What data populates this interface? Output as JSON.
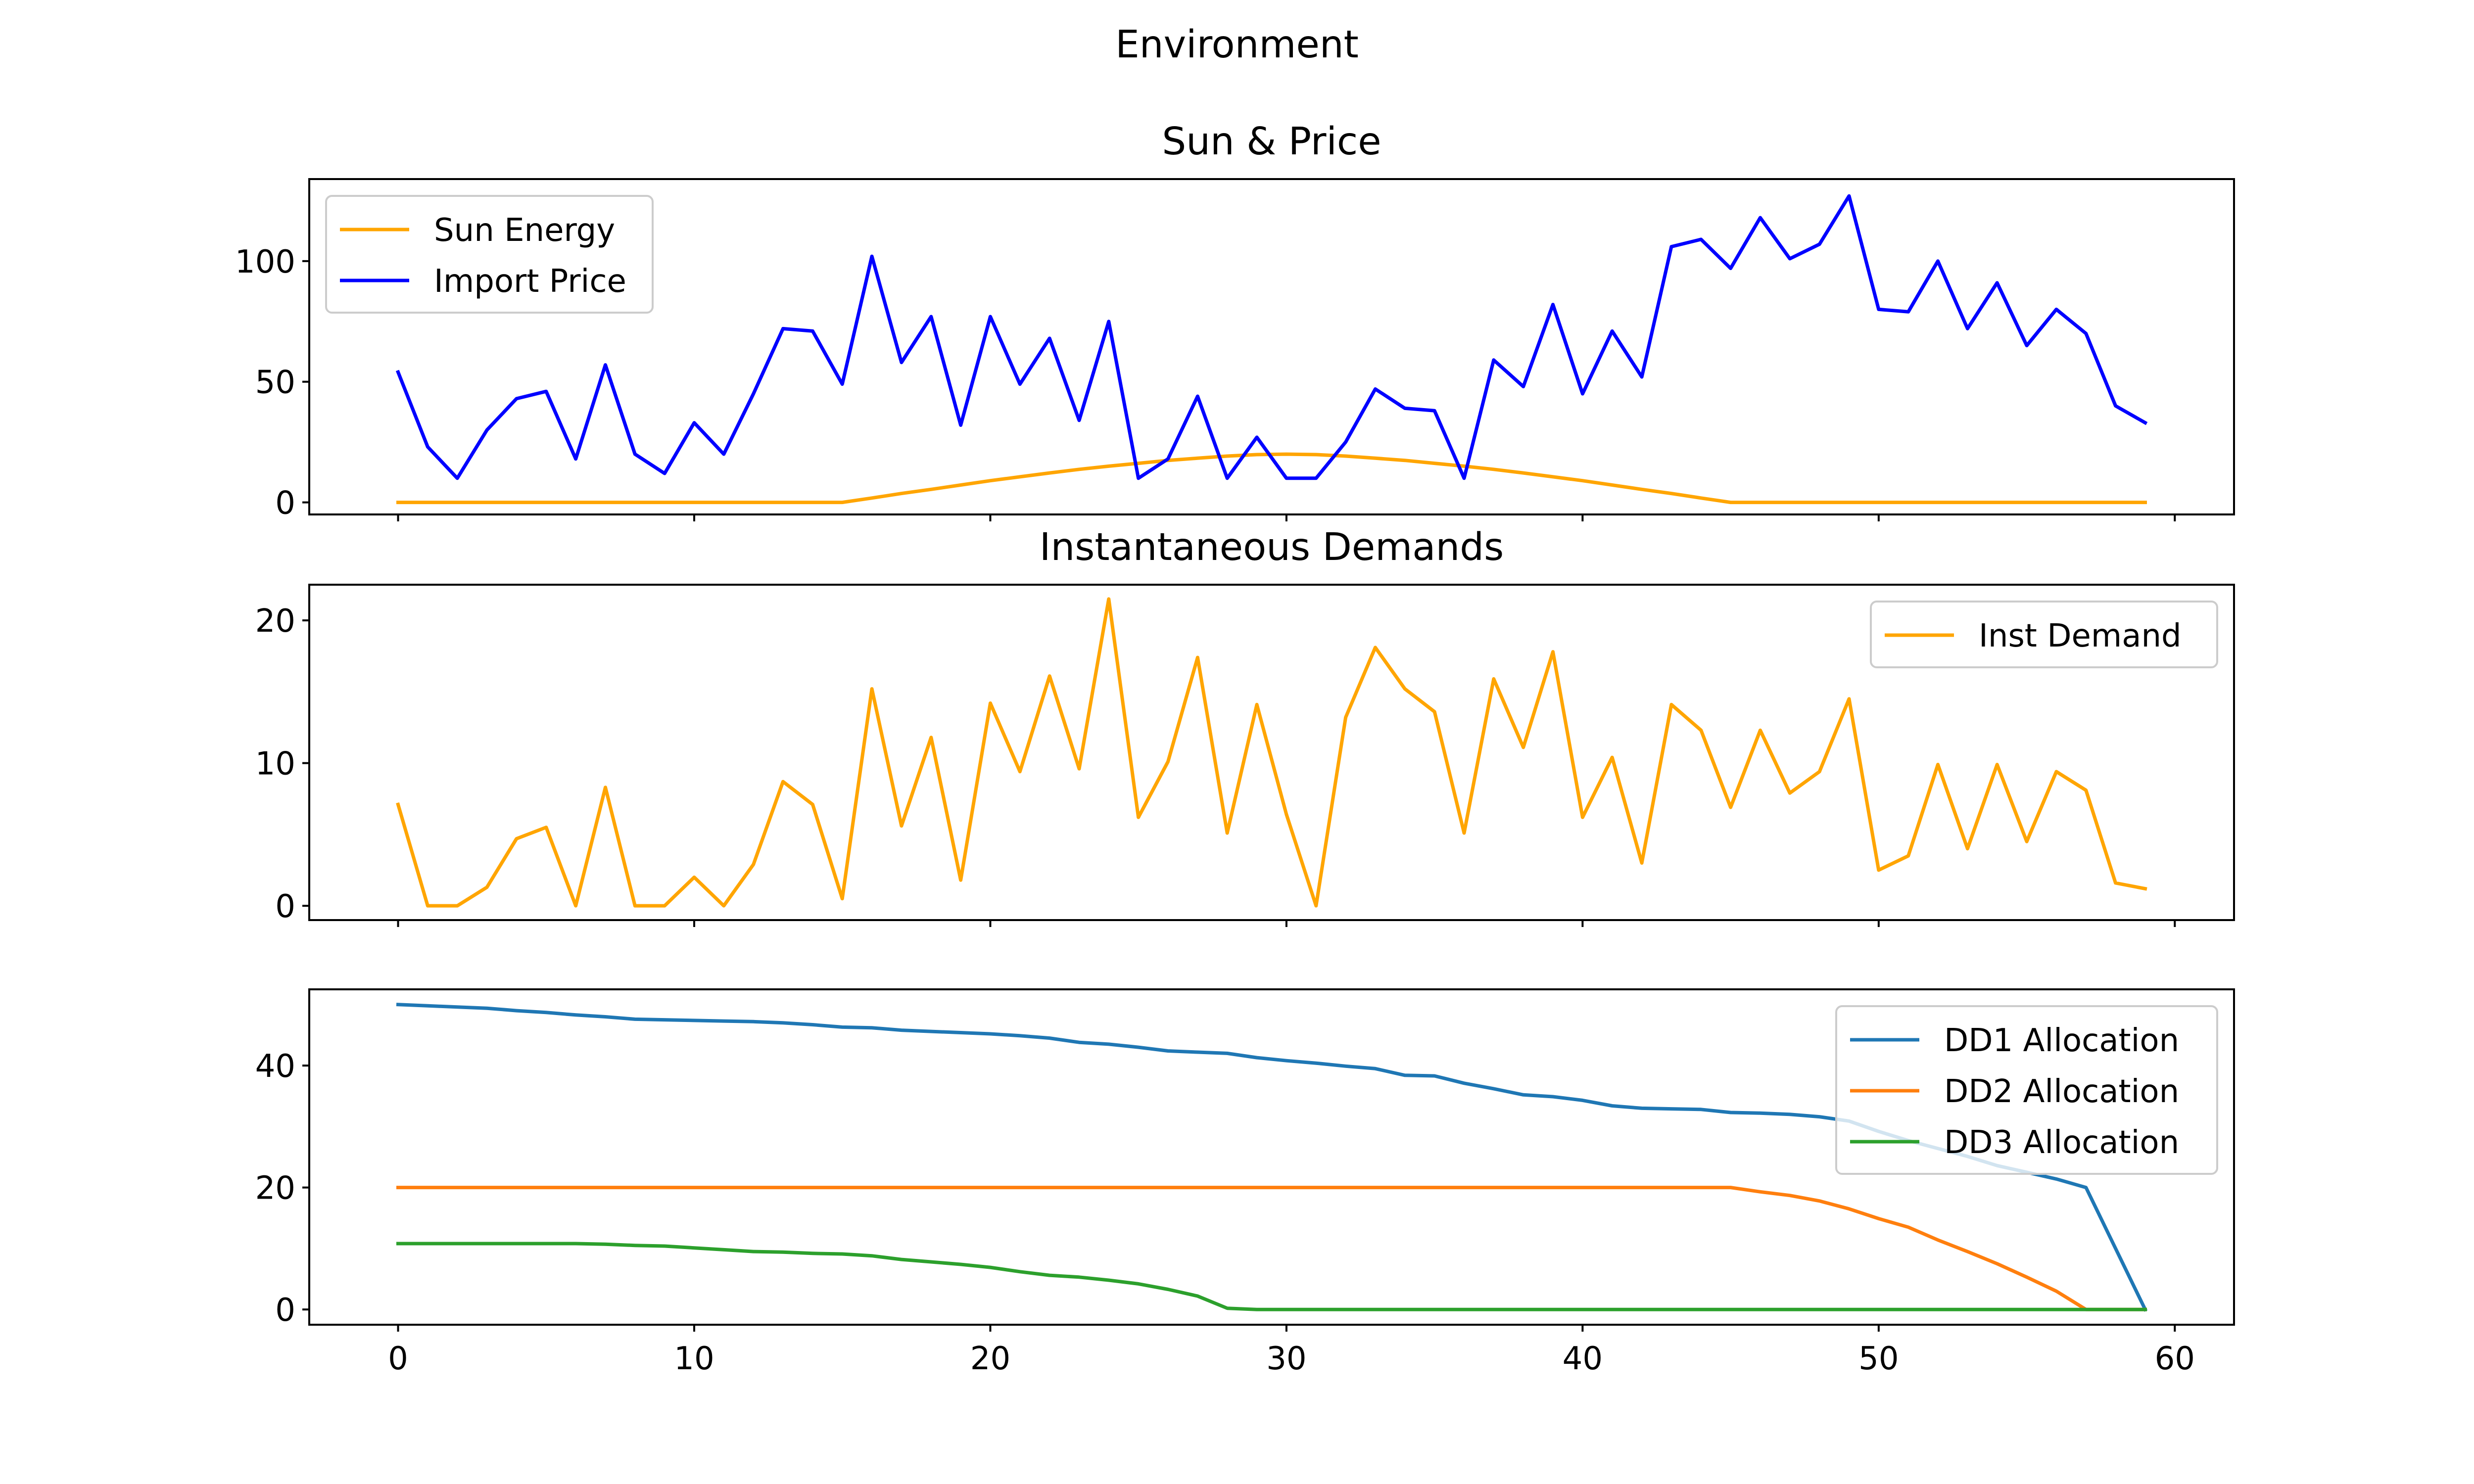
{
  "figure": {
    "suptitle": "Environment"
  },
  "chart_data": [
    {
      "type": "line",
      "title": "Sun & Price",
      "xlabel": "",
      "ylabel": "",
      "xlim": [
        -3,
        62
      ],
      "ylim": [
        -5,
        134
      ],
      "x_ticks": [
        0,
        10,
        20,
        30,
        40,
        50,
        60
      ],
      "x_tick_labels_shown": false,
      "y_ticks": [
        0,
        50,
        100
      ],
      "y_tick_labels": [
        "0",
        "50",
        "100"
      ],
      "grid": false,
      "legend_position": "upper left",
      "series": [
        {
          "name": "Sun Energy",
          "color": "#FFA500",
          "values": [
            0,
            0,
            0,
            0,
            0,
            0,
            0,
            0,
            0,
            0,
            0,
            0,
            0,
            0,
            0,
            0,
            1.8,
            3.7,
            5.4,
            7.2,
            9.0,
            10.6,
            12.2,
            13.7,
            15.0,
            16.2,
            17.4,
            18.3,
            19.2,
            19.8,
            20.0,
            19.8,
            19.2,
            18.3,
            17.4,
            16.2,
            15.0,
            13.7,
            12.2,
            10.6,
            9.0,
            7.2,
            5.4,
            3.7,
            1.8,
            0,
            0,
            0,
            0,
            0,
            0,
            0,
            0,
            0,
            0,
            0,
            0,
            0,
            0,
            0
          ]
        },
        {
          "name": "Import Price",
          "color": "#0000FF",
          "values": [
            54,
            23,
            10,
            30,
            43,
            46,
            18,
            57,
            20,
            12,
            33,
            20,
            45,
            72,
            71,
            49,
            102,
            58,
            77,
            32,
            77,
            49,
            68,
            34,
            75,
            10,
            18,
            44,
            10,
            27,
            10,
            10,
            25,
            47,
            39,
            38,
            10,
            59,
            48,
            82,
            45,
            71,
            52,
            106,
            109,
            97,
            118,
            101,
            107,
            127,
            80,
            79,
            100,
            72,
            91,
            65,
            80,
            70,
            40,
            33
          ]
        }
      ]
    },
    {
      "type": "line",
      "title": "Instantaneous Demands",
      "xlabel": "",
      "ylabel": "",
      "xlim": [
        -3,
        62
      ],
      "ylim": [
        -1,
        22.5
      ],
      "x_ticks": [
        0,
        10,
        20,
        30,
        40,
        50,
        60
      ],
      "x_tick_labels_shown": false,
      "y_ticks": [
        0,
        10,
        20
      ],
      "y_tick_labels": [
        "0",
        "10",
        "20"
      ],
      "grid": false,
      "legend_position": "upper right",
      "series": [
        {
          "name": "Inst Demand",
          "color": "#FFA500",
          "values": [
            7.1,
            0,
            0,
            1.3,
            4.7,
            5.5,
            0,
            8.3,
            0,
            0,
            2.0,
            0,
            2.9,
            8.7,
            7.1,
            0.5,
            15.2,
            5.6,
            11.8,
            1.8,
            14.2,
            9.4,
            16.1,
            9.6,
            21.5,
            6.2,
            10.1,
            17.4,
            5.1,
            14.1,
            6.4,
            0,
            13.2,
            18.1,
            15.2,
            13.6,
            5.1,
            15.9,
            11.1,
            17.8,
            6.2,
            10.4,
            3.0,
            14.1,
            12.3,
            6.9,
            12.3,
            7.9,
            9.4,
            14.5,
            2.5,
            3.5,
            9.9,
            4.0,
            9.9,
            4.5,
            9.4,
            8.1,
            1.6,
            1.2
          ]
        }
      ]
    },
    {
      "type": "line",
      "title": "",
      "xlabel": "",
      "ylabel": "",
      "xlim": [
        -3,
        62
      ],
      "ylim": [
        -2.5,
        52.5
      ],
      "x_ticks": [
        0,
        10,
        20,
        30,
        40,
        50,
        60
      ],
      "x_tick_labels": [
        "0",
        "10",
        "20",
        "30",
        "40",
        "50",
        "60"
      ],
      "y_ticks": [
        0,
        20,
        40
      ],
      "y_tick_labels": [
        "0",
        "20",
        "40"
      ],
      "grid": false,
      "legend_position": "upper right",
      "series": [
        {
          "name": "DD1 Allocation",
          "color": "#1F77B4",
          "values": [
            50,
            49.8,
            49.6,
            49.4,
            49.0,
            48.7,
            48.3,
            48.0,
            47.6,
            47.5,
            47.4,
            47.3,
            47.2,
            47.0,
            46.7,
            46.3,
            46.2,
            45.8,
            45.6,
            45.4,
            45.2,
            44.9,
            44.5,
            43.8,
            43.5,
            43.0,
            42.4,
            42.2,
            42.0,
            41.3,
            40.8,
            40.4,
            39.9,
            39.5,
            38.4,
            38.3,
            37.1,
            36.2,
            35.2,
            34.9,
            34.3,
            33.4,
            33.0,
            32.9,
            32.8,
            32.3,
            32.2,
            32.0,
            31.6,
            30.9,
            29.2,
            27.7,
            26.4,
            25.1,
            23.6,
            22.5,
            21.4,
            20.0,
            10,
            0
          ]
        },
        {
          "name": "DD2 Allocation",
          "color": "#FF7F0E",
          "values": [
            20,
            20,
            20,
            20,
            20,
            20,
            20,
            20,
            20,
            20,
            20,
            20,
            20,
            20,
            20,
            20,
            20,
            20,
            20,
            20,
            20,
            20,
            20,
            20,
            20,
            20,
            20,
            20,
            20,
            20,
            20,
            20,
            20,
            20,
            20,
            20,
            20,
            20,
            20,
            20,
            20,
            20,
            20,
            20,
            20,
            20,
            19.3,
            18.7,
            17.8,
            16.5,
            14.9,
            13.5,
            11.4,
            9.5,
            7.5,
            5.3,
            3.0,
            0,
            0,
            0
          ]
        },
        {
          "name": "DD3 Allocation",
          "color": "#2CA02C",
          "values": [
            10.8,
            10.8,
            10.8,
            10.8,
            10.8,
            10.8,
            10.8,
            10.7,
            10.5,
            10.4,
            10.1,
            9.8,
            9.5,
            9.4,
            9.2,
            9.1,
            8.8,
            8.2,
            7.8,
            7.4,
            6.9,
            6.2,
            5.6,
            5.3,
            4.8,
            4.2,
            3.3,
            2.2,
            0.2,
            0,
            0,
            0,
            0,
            0,
            0,
            0,
            0,
            0,
            0,
            0,
            0,
            0,
            0,
            0,
            0,
            0,
            0,
            0,
            0,
            0,
            0,
            0,
            0,
            0,
            0,
            0,
            0,
            0,
            0,
            0
          ]
        }
      ]
    }
  ]
}
